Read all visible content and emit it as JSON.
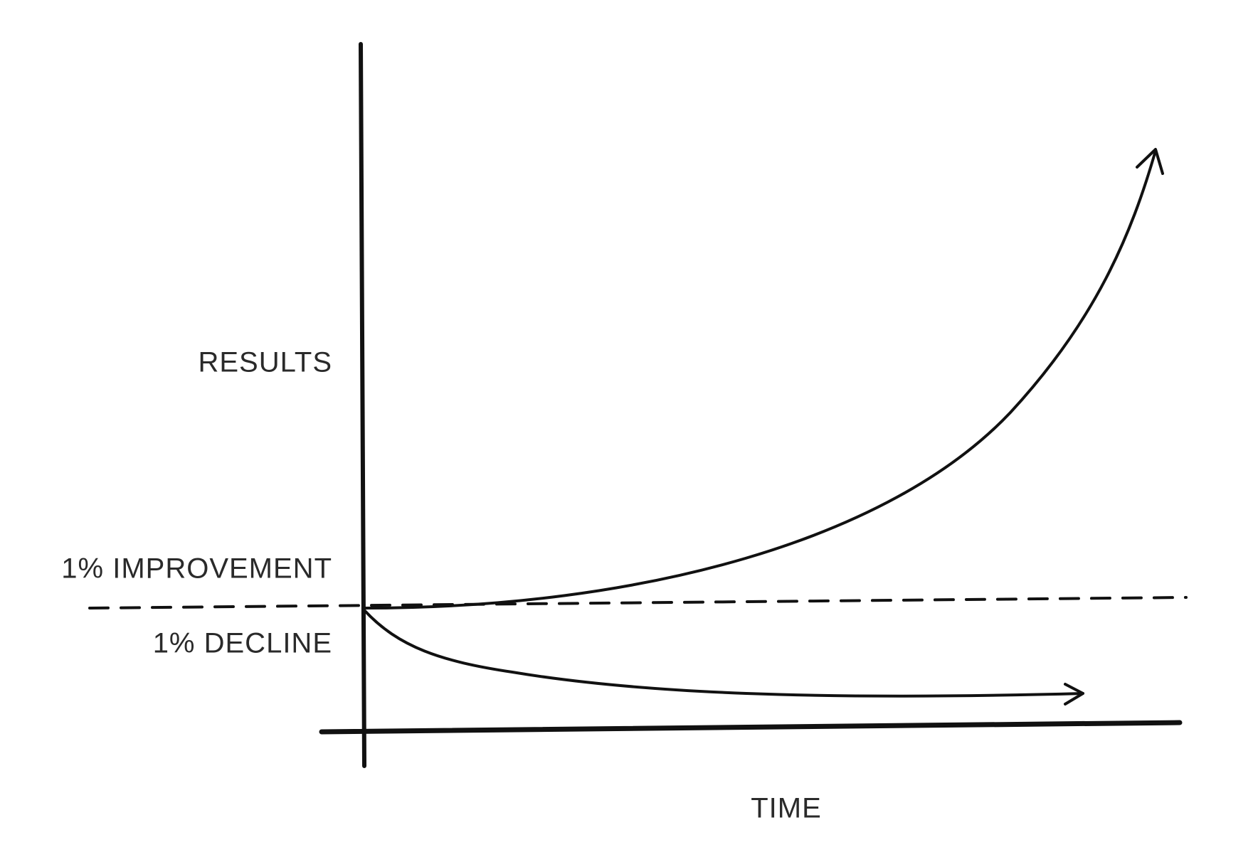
{
  "labels": {
    "y_axis": "RESULTS",
    "improvement": "1% IMPROVEMENT",
    "decline": "1% DECLINE",
    "x_axis": "TIME"
  }
}
